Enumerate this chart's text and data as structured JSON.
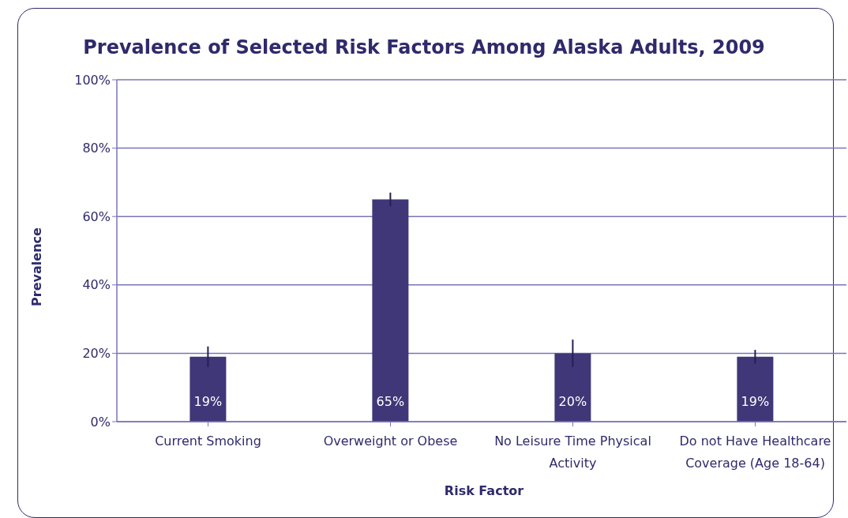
{
  "chart_data": {
    "type": "bar",
    "title": "Prevalence of Selected Risk Factors Among Alaska Adults, 2009",
    "xlabel": "Risk Factor",
    "ylabel": "Prevalence",
    "categories": [
      "Current Smoking",
      "Overweight or Obese",
      "No Leisure Time Physical Activity",
      "Do not Have Healthcare Coverage (Age 18-64)"
    ],
    "values": [
      19,
      65,
      20,
      19
    ],
    "errors": [
      [
        16,
        22
      ],
      [
        63,
        67
      ],
      [
        16,
        24
      ],
      [
        17,
        21
      ]
    ],
    "value_labels": [
      "19%",
      "65%",
      "20%",
      "19%"
    ],
    "color": "#3f3778",
    "ylim": [
      0,
      100
    ],
    "yticks": [
      {
        "value": 0,
        "label": "0%"
      },
      {
        "value": 20,
        "label": "20%"
      },
      {
        "value": 40,
        "label": "40%"
      },
      {
        "value": 60,
        "label": "60%"
      },
      {
        "value": 80,
        "label": "80%"
      },
      {
        "value": 100,
        "label": "100%"
      }
    ],
    "grid": "y"
  }
}
